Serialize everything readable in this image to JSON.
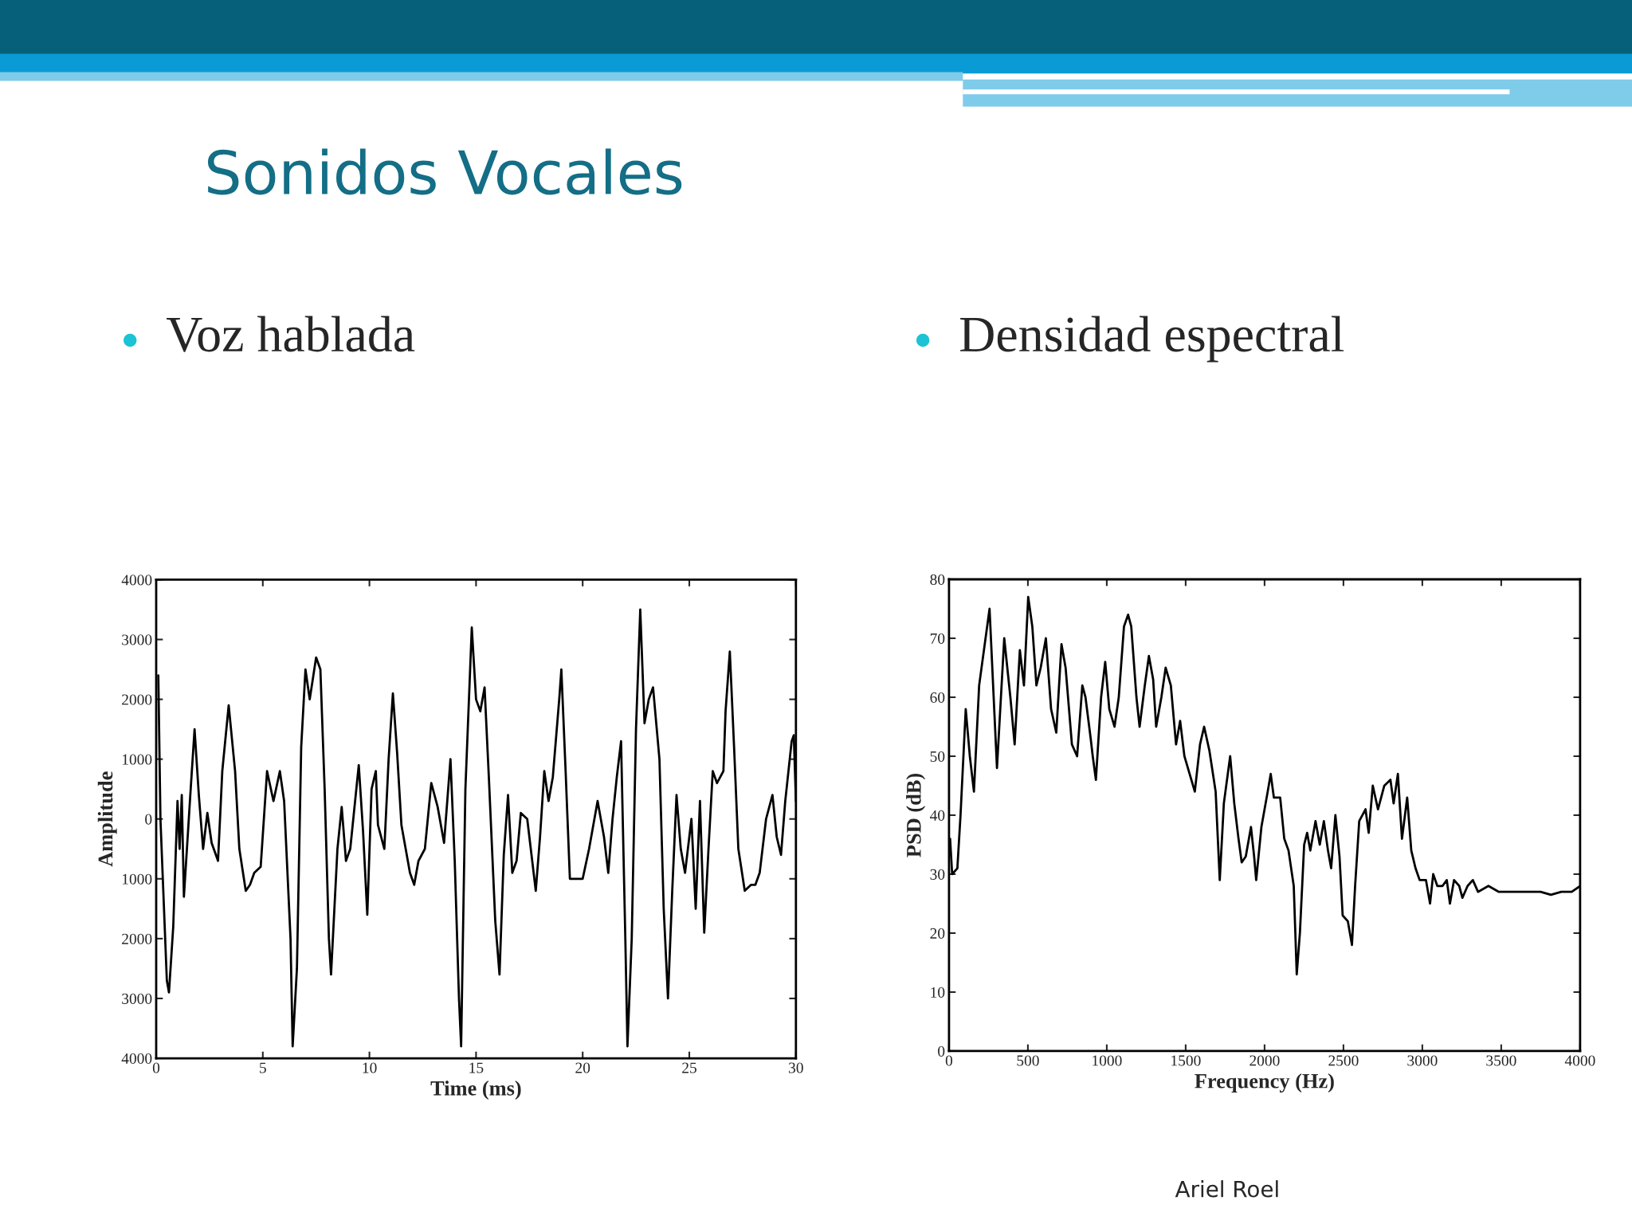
{
  "chart_data": [
    {
      "type": "other",
      "title": "Sonidos Vocales",
      "annotations": [
        "Ariel Roel"
      ]
    },
    {
      "type": "line",
      "title": "Voz hablada",
      "xlabel": "Time (ms)",
      "ylabel": "Amplitude",
      "xlim": [
        0,
        30
      ],
      "xticks": [
        0,
        5,
        10,
        15,
        20,
        25,
        30
      ],
      "ylim": [
        -4000,
        4000
      ],
      "yticks": [
        {
          "value": -4000,
          "label": "4000"
        },
        {
          "value": -3000,
          "label": "3000"
        },
        {
          "value": -2000,
          "label": "2000"
        },
        {
          "value": -1000,
          "label": "1000"
        },
        0,
        1000,
        2000,
        3000,
        4000
      ],
      "line_style": "solid",
      "series": [
        {
          "color": "#000000",
          "x": [
            0.1,
            0.2,
            0.5,
            0.6,
            0.8,
            1.0,
            1.1,
            1.2,
            1.3,
            1.6,
            1.8,
            2.0,
            2.2,
            2.4,
            2.6,
            2.9,
            3.1,
            3.4,
            3.7,
            3.9,
            4.2,
            4.4,
            4.6,
            4.9,
            5.2,
            5.5,
            5.8,
            6.0,
            6.3,
            6.4,
            6.6,
            6.8,
            7.0,
            7.2,
            7.5,
            7.7,
            7.9,
            8.1,
            8.2,
            8.5,
            8.7,
            8.9,
            9.1,
            9.5,
            9.7,
            9.9,
            10.1,
            10.3,
            10.4,
            10.7,
            10.9,
            11.1,
            11.3,
            11.5,
            11.7,
            11.9,
            12.1,
            12.3,
            12.6,
            12.9,
            13.2,
            13.5,
            13.8,
            14.0,
            14.2,
            14.3,
            14.5,
            14.8,
            15.0,
            15.2,
            15.4,
            15.6,
            15.9,
            16.1,
            16.3,
            16.5,
            16.7,
            16.9,
            17.1,
            17.4,
            17.6,
            17.8,
            18.0,
            18.2,
            18.4,
            18.6,
            18.9,
            19.0,
            19.2,
            19.4,
            19.6,
            20.0,
            20.3,
            20.7,
            21.0,
            21.2,
            21.4,
            21.6,
            21.8,
            22.0,
            22.1,
            22.3,
            22.5,
            22.7,
            22.9,
            23.1,
            23.3,
            23.6,
            23.8,
            24.0,
            24.2,
            24.4,
            24.6,
            24.8,
            25.1,
            25.3,
            25.5,
            25.7,
            25.9,
            26.1,
            26.3,
            26.6,
            26.7,
            26.9,
            27.1,
            27.3,
            27.6,
            27.9,
            28.1,
            28.3,
            28.6,
            28.9,
            29.1,
            29.3,
            29.5,
            29.8,
            29.9,
            30.0
          ],
          "values": [
            2400,
            0,
            -2700,
            -2900,
            -1800,
            300,
            -500,
            400,
            -1300,
            400,
            1500,
            400,
            -500,
            100,
            -400,
            -700,
            800,
            1900,
            800,
            -500,
            -1200,
            -1100,
            -900,
            -800,
            800,
            300,
            800,
            300,
            -2000,
            -3800,
            -2500,
            1200,
            2500,
            2000,
            2700,
            2500,
            500,
            -2000,
            -2600,
            -500,
            200,
            -700,
            -500,
            900,
            -200,
            -1600,
            500,
            800,
            -100,
            -500,
            1000,
            2100,
            1100,
            -100,
            -500,
            -900,
            -1100,
            -700,
            -500,
            600,
            200,
            -400,
            1000,
            -700,
            -3000,
            -3800,
            500,
            3200,
            2000,
            1800,
            2200,
            700,
            -1700,
            -2600,
            -600,
            400,
            -900,
            -700,
            100,
            0,
            -600,
            -1200,
            -300,
            800,
            300,
            700,
            2000,
            2500,
            800,
            -1000,
            -1000,
            -1000,
            -500,
            300,
            -300,
            -900,
            0,
            700,
            1300,
            -2000,
            -3800,
            -2000,
            1500,
            3500,
            1600,
            2000,
            2200,
            1000,
            -1500,
            -3000,
            -1200,
            400,
            -500,
            -900,
            0,
            -1500,
            300,
            -1900,
            -500,
            800,
            600,
            800,
            1800,
            2800,
            1200,
            -500,
            -1200,
            -1100,
            -1100,
            -900,
            0,
            400,
            -300,
            -600,
            300,
            1300,
            1400,
            300
          ]
        }
      ]
    },
    {
      "type": "line",
      "title": "Densidad espectral",
      "xlabel": "Frequency (Hz)",
      "ylabel": "PSD (dB)",
      "xlim": [
        0,
        4000
      ],
      "xticks": [
        0,
        500,
        1000,
        1500,
        2000,
        2500,
        3000,
        3500,
        4000
      ],
      "ylim": [
        0,
        80
      ],
      "yticks": [
        0,
        10,
        20,
        30,
        40,
        50,
        60,
        70,
        80
      ],
      "line_style": "solid",
      "series": [
        {
          "color": "#000000",
          "x": [
            7,
            20,
            53,
            73,
            106,
            132,
            158,
            191,
            257,
            290,
            304,
            350,
            389,
            416,
            449,
            475,
            502,
            528,
            554,
            581,
            614,
            647,
            680,
            713,
            739,
            779,
            812,
            845,
            865,
            898,
            911,
            931,
            964,
            990,
            1016,
            1049,
            1076,
            1109,
            1135,
            1155,
            1188,
            1208,
            1241,
            1267,
            1294,
            1313,
            1346,
            1373,
            1406,
            1439,
            1465,
            1492,
            1525,
            1558,
            1591,
            1617,
            1650,
            1690,
            1716,
            1742,
            1782,
            1808,
            1835,
            1855,
            1881,
            1914,
            1934,
            1947,
            1980,
            2020,
            2039,
            2059,
            2099,
            2125,
            2152,
            2185,
            2204,
            2224,
            2251,
            2270,
            2290,
            2323,
            2350,
            2376,
            2402,
            2422,
            2449,
            2475,
            2495,
            2528,
            2554,
            2574,
            2600,
            2640,
            2660,
            2686,
            2719,
            2759,
            2798,
            2818,
            2845,
            2871,
            2904,
            2930,
            2957,
            2983,
            3023,
            3049,
            3069,
            3095,
            3128,
            3155,
            3175,
            3201,
            3234,
            3254,
            3287,
            3320,
            3353,
            3419,
            3485,
            3617,
            3683,
            3749,
            3815,
            3881,
            3947,
            4000
          ],
          "values": [
            36,
            30,
            31,
            40,
            58,
            50,
            44,
            62,
            75,
            56,
            48,
            70,
            60,
            52,
            68,
            62,
            77,
            72,
            62,
            65,
            70,
            58,
            54,
            69,
            65,
            52,
            50,
            62,
            60,
            53,
            50,
            46,
            60,
            66,
            58,
            55,
            60,
            72,
            74,
            72,
            60,
            55,
            62,
            67,
            63,
            55,
            60,
            65,
            62,
            52,
            56,
            50,
            47,
            44,
            52,
            55,
            51,
            44,
            29,
            42,
            50,
            42,
            36,
            32,
            33,
            38,
            33,
            29,
            38,
            44,
            47,
            43,
            43,
            36,
            34,
            28,
            13,
            20,
            35,
            37,
            34,
            39,
            35,
            39,
            34,
            31,
            40,
            33,
            23,
            22,
            18,
            28,
            39,
            41,
            37,
            45,
            41,
            45,
            46,
            42,
            47,
            36,
            43,
            34,
            31,
            29,
            29,
            25,
            30,
            28,
            28,
            29,
            25,
            29,
            28,
            26,
            28,
            29,
            27,
            28,
            27,
            27,
            27,
            27,
            26.5,
            27,
            27,
            28
          ]
        }
      ]
    }
  ]
}
